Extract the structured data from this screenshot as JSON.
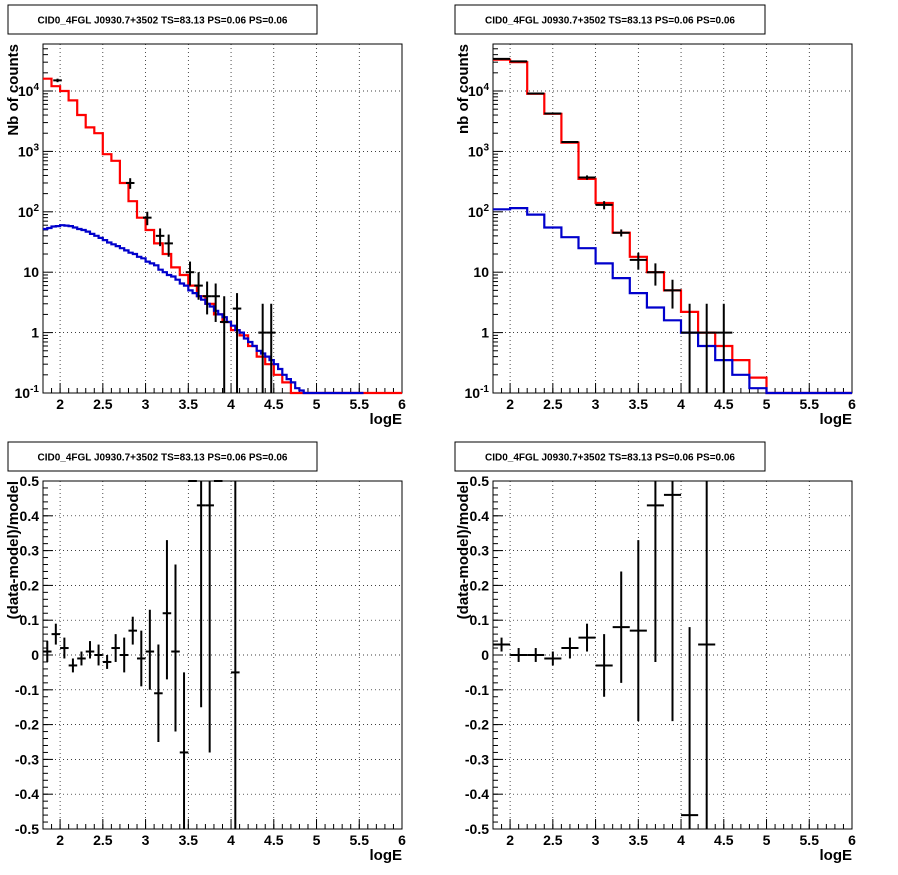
{
  "chart_data": [
    {
      "type": "line",
      "subtype": "histogram-with-errorbars",
      "title": "CID0_4FGL J0930.7+3502 TS=83.13 PS=0.06 PS=0.06",
      "xlabel": "logE",
      "ylabel": "Nb of counts",
      "xlim": [
        1.8,
        6.0
      ],
      "ylim": [
        0.1,
        60000
      ],
      "yscale": "log",
      "grid": true,
      "xticks": [
        "2",
        "2.5",
        "3",
        "3.5",
        "4",
        "4.5",
        "5",
        "5.5",
        "6"
      ],
      "yticks": [
        "10^-1",
        "1",
        "10",
        "10^2",
        "10^3",
        "10^4"
      ],
      "series": [
        {
          "color": "#ff0000",
          "step": true,
          "bin_width": 0.1,
          "x": [
            1.8,
            1.9,
            2.0,
            2.1,
            2.2,
            2.3,
            2.4,
            2.5,
            2.6,
            2.7,
            2.8,
            2.9,
            3.0,
            3.1,
            3.2,
            3.3,
            3.4,
            3.5,
            3.6,
            3.7,
            3.8,
            3.9,
            4.0,
            4.1,
            4.2,
            4.3,
            4.4,
            4.5,
            4.6,
            4.7,
            4.8,
            4.9,
            5.0,
            5.1,
            5.2,
            5.3,
            5.4,
            5.5,
            5.6,
            5.7,
            5.8,
            5.9
          ],
          "y": [
            16000,
            12000,
            10000,
            7000,
            4000,
            2500,
            2000,
            900,
            700,
            300,
            150,
            80,
            50,
            30,
            20,
            12,
            9,
            6,
            4,
            3,
            2,
            1.5,
            1.1,
            0.9,
            0.6,
            0.4,
            0.3,
            0.2,
            0.15,
            0.1,
            0.1,
            0.1,
            0.1,
            0.1,
            0.1,
            0.1,
            0.1,
            0.1,
            0.1,
            0.1,
            0.1,
            0.1
          ]
        },
        {
          "color": "#0000cc",
          "step": true,
          "bin_width": 0.05,
          "x": [
            1.8,
            1.85,
            1.9,
            1.95,
            2.0,
            2.05,
            2.1,
            2.15,
            2.2,
            2.25,
            2.3,
            2.35,
            2.4,
            2.45,
            2.5,
            2.55,
            2.6,
            2.65,
            2.7,
            2.75,
            2.8,
            2.85,
            2.9,
            2.95,
            3.0,
            3.05,
            3.1,
            3.15,
            3.2,
            3.25,
            3.3,
            3.35,
            3.4,
            3.45,
            3.5,
            3.55,
            3.6,
            3.65,
            3.7,
            3.75,
            3.8,
            3.85,
            3.9,
            3.95,
            4.0,
            4.05,
            4.1,
            4.15,
            4.2,
            4.25,
            4.3,
            4.35,
            4.4,
            4.45,
            4.5,
            4.55,
            4.6,
            4.65,
            4.7,
            4.75,
            4.8,
            4.85,
            4.9,
            4.95,
            5.0,
            5.5
          ],
          "y": [
            52,
            54,
            57,
            58,
            60,
            59,
            58,
            55,
            52,
            50,
            47,
            43,
            40,
            37,
            34,
            31,
            29,
            27,
            25,
            23,
            21,
            20,
            18,
            17,
            15,
            14,
            13,
            11,
            10,
            9,
            8.5,
            7.5,
            6.5,
            6,
            5,
            4.5,
            4,
            3.5,
            3,
            2.7,
            2.3,
            2,
            1.8,
            1.5,
            1.3,
            1.1,
            1,
            0.8,
            0.7,
            0.6,
            0.5,
            0.45,
            0.4,
            0.35,
            0.3,
            0.25,
            0.2,
            0.17,
            0.15,
            0.12,
            0.11,
            0.1,
            0.1,
            0.1,
            0.1,
            0.1
          ]
        }
      ],
      "points": {
        "color": "#000000",
        "x": [
          1.97,
          2.82,
          3.02,
          3.17,
          3.27,
          3.52,
          3.62,
          3.72,
          3.82,
          3.92,
          4.07,
          4.37,
          4.47
        ],
        "y": [
          15000,
          300,
          80,
          40,
          30,
          10,
          6,
          4,
          4,
          1.5,
          2.5,
          1,
          1
        ],
        "ylo": [
          14000,
          240,
          60,
          27,
          18,
          6,
          3.5,
          2,
          1.5,
          0.1,
          0.1,
          0.1,
          0.1
        ],
        "yhi": [
          16000,
          360,
          100,
          53,
          42,
          15,
          10,
          7,
          6.5,
          4,
          4.5,
          3,
          3
        ],
        "xerr": 0.05
      }
    },
    {
      "type": "line",
      "subtype": "histogram-with-errorbars",
      "title": "CID0_4FGL J0930.7+3502 TS=83.13 PS=0.06 PS=0.06",
      "xlabel": "logE",
      "ylabel": "nb of counts",
      "xlim": [
        1.8,
        6.0
      ],
      "ylim": [
        0.1,
        60000
      ],
      "yscale": "log",
      "grid": true,
      "xticks": [
        "2",
        "2.5",
        "3",
        "3.5",
        "4",
        "4.5",
        "5",
        "5.5",
        "6"
      ],
      "yticks": [
        "10^-1",
        "1",
        "10",
        "10^2",
        "10^3",
        "10^4"
      ],
      "series": [
        {
          "color": "#ff0000",
          "step": true,
          "bin_width": 0.2,
          "x": [
            1.8,
            2.0,
            2.2,
            2.4,
            2.6,
            2.8,
            3.0,
            3.2,
            3.4,
            3.6,
            3.8,
            4.0,
            4.2,
            4.4,
            4.6,
            4.8,
            5.0,
            5.2,
            5.4,
            5.6,
            5.8
          ],
          "y": [
            33000,
            30000,
            9000,
            4200,
            1400,
            350,
            140,
            45,
            18,
            10,
            5,
            2.2,
            1.0,
            0.6,
            0.35,
            0.18,
            0.1,
            0.1,
            0.1,
            0.1,
            0.1
          ]
        },
        {
          "color": "#0000cc",
          "step": true,
          "bin_width": 0.2,
          "x": [
            1.8,
            2.0,
            2.2,
            2.4,
            2.6,
            2.8,
            3.0,
            3.2,
            3.4,
            3.6,
            3.8,
            4.0,
            4.2,
            4.4,
            4.6,
            4.8,
            5.0,
            5.2,
            5.4,
            5.6,
            5.8
          ],
          "y": [
            110,
            115,
            90,
            55,
            38,
            25,
            14,
            8,
            4.5,
            2.6,
            1.6,
            1.0,
            0.6,
            0.35,
            0.2,
            0.12,
            0.1,
            0.1,
            0.1,
            0.1,
            0.1
          ]
        }
      ],
      "points": {
        "color": "#000000",
        "x": [
          1.9,
          2.1,
          2.3,
          2.5,
          2.7,
          2.9,
          3.1,
          3.3,
          3.5,
          3.7,
          3.9,
          4.1,
          4.3,
          4.5
        ],
        "y": [
          34000,
          31000,
          9100,
          4250,
          1430,
          370,
          130,
          45,
          16,
          10,
          5,
          1,
          1,
          1
        ],
        "ylo": [
          33000,
          30000,
          8900,
          4150,
          1380,
          340,
          110,
          39,
          11,
          6,
          2.5,
          0.1,
          0.1,
          0.1
        ],
        "yhi": [
          35000,
          32000,
          9300,
          4350,
          1480,
          400,
          150,
          51,
          21,
          14,
          7.5,
          3,
          3,
          3
        ],
        "xerr": 0.1
      }
    },
    {
      "type": "scatter",
      "subtype": "errorbars",
      "title": "CID0_4FGL J0930.7+3502 TS=83.13 PS=0.06 PS=0.06",
      "xlabel": "logE",
      "ylabel": "(data-model)/model",
      "xlim": [
        1.8,
        6.0
      ],
      "ylim": [
        -0.5,
        0.5
      ],
      "grid": true,
      "xticks": [
        "2",
        "2.5",
        "3",
        "3.5",
        "4",
        "4.5",
        "5",
        "5.5",
        "6"
      ],
      "yticks": [
        "-0.5",
        "-0.4",
        "-0.3",
        "-0.2",
        "-0.1",
        "0",
        "0.1",
        "0.2",
        "0.3",
        "0.4",
        "0.5"
      ],
      "points": {
        "color": "#000000",
        "x": [
          1.85,
          1.95,
          2.05,
          2.15,
          2.25,
          2.35,
          2.45,
          2.55,
          2.65,
          2.75,
          2.85,
          2.95,
          3.05,
          3.15,
          3.25,
          3.35,
          3.45,
          3.55,
          3.65,
          3.75,
          3.85,
          4.05
        ],
        "y": [
          0.01,
          0.06,
          0.02,
          -0.03,
          -0.01,
          0.01,
          0.0,
          -0.02,
          0.02,
          0.0,
          0.07,
          -0.01,
          0.01,
          -0.11,
          0.12,
          0.01,
          -0.28,
          0.5,
          0.43,
          0.43,
          0.5,
          -0.05
        ],
        "ylo": [
          -0.02,
          0.03,
          -0.01,
          -0.05,
          -0.03,
          -0.01,
          -0.03,
          -0.04,
          -0.02,
          -0.05,
          0.03,
          -0.09,
          -0.1,
          -0.25,
          -0.07,
          -0.22,
          -0.5,
          0.5,
          -0.15,
          -0.28,
          0.5,
          -0.5
        ],
        "yhi": [
          0.04,
          0.09,
          0.05,
          -0.01,
          0.01,
          0.04,
          0.03,
          0.0,
          0.06,
          0.05,
          0.11,
          0.07,
          0.13,
          0.03,
          0.33,
          0.26,
          -0.05,
          0.5,
          0.5,
          0.5,
          0.5,
          0.5
        ],
        "xerr": 0.05
      }
    },
    {
      "type": "scatter",
      "subtype": "errorbars",
      "title": "CID0_4FGL J0930.7+3502 TS=83.13 PS=0.06 PS=0.06",
      "xlabel": "logE",
      "ylabel": "(data-model)/model",
      "xlim": [
        1.8,
        6.0
      ],
      "ylim": [
        -0.5,
        0.5
      ],
      "grid": true,
      "xticks": [
        "2",
        "2.5",
        "3",
        "3.5",
        "4",
        "4.5",
        "5",
        "5.5",
        "6"
      ],
      "yticks": [
        "-0.5",
        "-0.4",
        "-0.3",
        "-0.2",
        "-0.1",
        "0",
        "0.1",
        "0.2",
        "0.3",
        "0.4",
        "0.5"
      ],
      "points": {
        "color": "#000000",
        "x": [
          1.9,
          2.1,
          2.3,
          2.5,
          2.7,
          2.9,
          3.1,
          3.3,
          3.5,
          3.7,
          3.9,
          4.1,
          4.3
        ],
        "y": [
          0.03,
          0.0,
          0.0,
          -0.01,
          0.02,
          0.05,
          -0.03,
          0.08,
          0.07,
          0.43,
          0.46,
          -0.46,
          0.03
        ],
        "ylo": [
          0.01,
          -0.02,
          -0.02,
          -0.03,
          -0.01,
          0.01,
          -0.12,
          -0.08,
          -0.19,
          -0.02,
          -0.19,
          -0.5,
          -0.5
        ],
        "yhi": [
          0.05,
          0.02,
          0.02,
          0.01,
          0.05,
          0.09,
          0.06,
          0.24,
          0.33,
          0.5,
          0.5,
          0.08,
          0.5
        ],
        "xerr": 0.1
      }
    }
  ]
}
